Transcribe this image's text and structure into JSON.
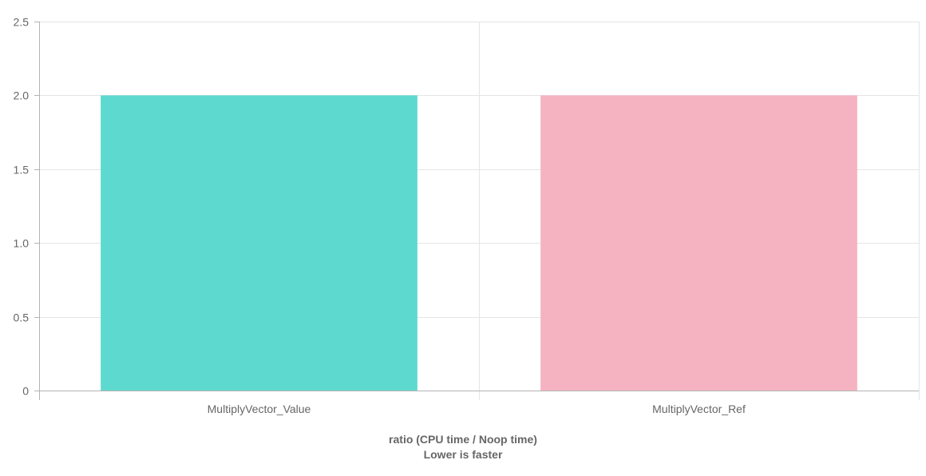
{
  "chart_data": {
    "type": "bar",
    "categories": [
      "MultiplyVector_Value",
      "MultiplyVector_Ref"
    ],
    "values": [
      2.0,
      2.0
    ],
    "colors": [
      "#5ed9cf",
      "#f5b3c1"
    ],
    "ylim": [
      0,
      2.5
    ],
    "yticks": [
      0,
      0.5,
      1.0,
      1.5,
      2.0,
      2.5
    ],
    "ytick_labels": [
      "0",
      "0.5",
      "1.0",
      "1.5",
      "2.0",
      "2.5"
    ],
    "xlabel_line1": "ratio (CPU time / Noop time)",
    "xlabel_line2": "Lower is faster",
    "grid": true,
    "grid_color": "#e5e5e5",
    "axis_color": "#b3b3b3",
    "text_color": "#666666"
  }
}
